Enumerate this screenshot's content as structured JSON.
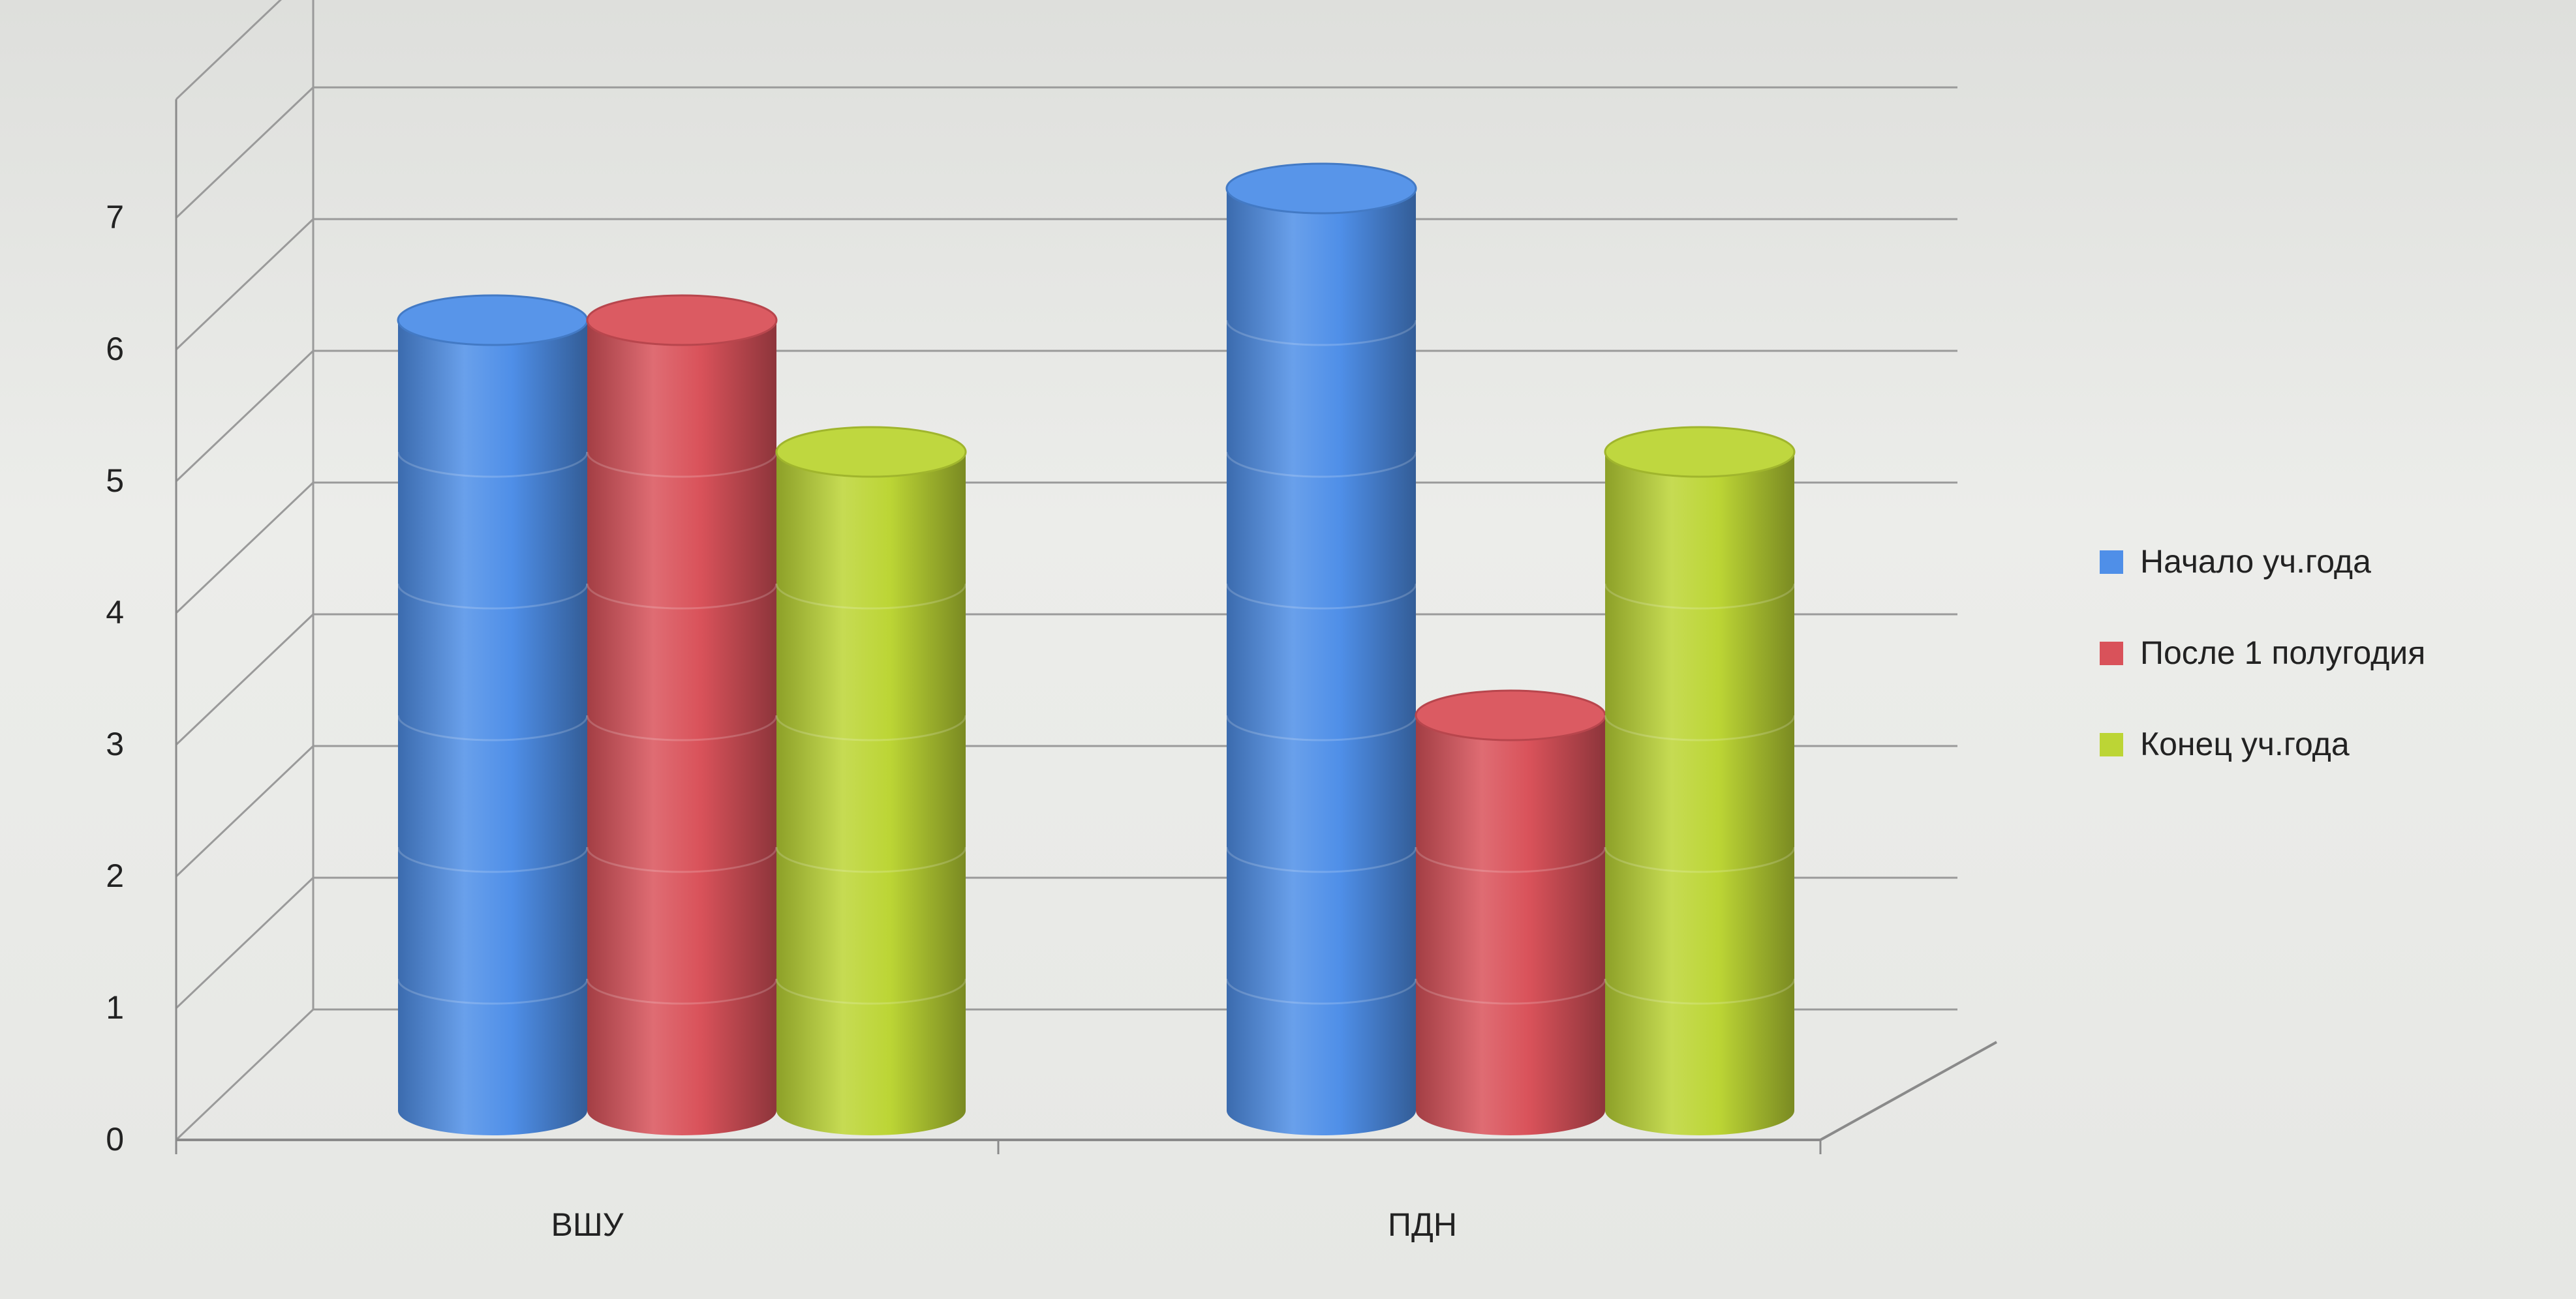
{
  "chart_data": {
    "type": "bar",
    "style": "3d-cylinder",
    "categories": [
      "ВШУ",
      "ПДН"
    ],
    "series": [
      {
        "name": "Начало уч.года",
        "values": [
          6,
          7
        ],
        "color": "#4f8fe8"
      },
      {
        "name": "После 1 полугодия",
        "values": [
          6,
          3
        ],
        "color": "#d9525a"
      },
      {
        "name": "Конец уч.года",
        "values": [
          5,
          5
        ],
        "color": "#bcd535"
      }
    ],
    "ylim": [
      0,
      7
    ],
    "yticks": [
      "0",
      "1",
      "2",
      "3",
      "4",
      "5",
      "6",
      "7"
    ],
    "grid": true,
    "legend": "right"
  }
}
